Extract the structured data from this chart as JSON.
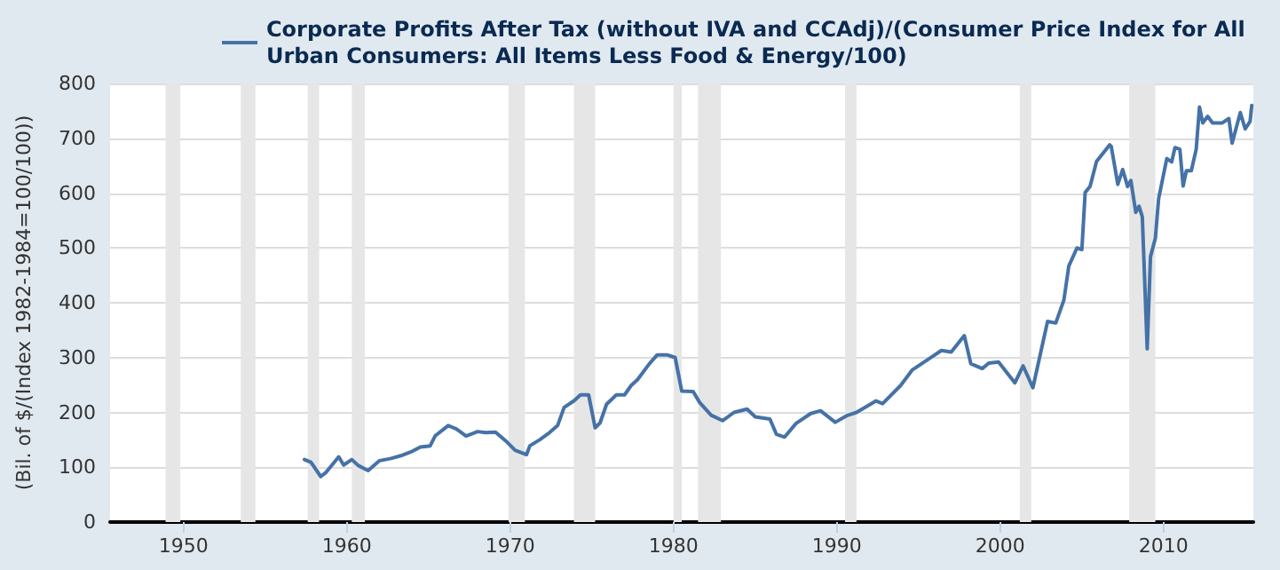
{
  "chart_data": {
    "type": "line",
    "ylabel": "(Bil. of $/(Index 1982-1984=100/100))",
    "xlim": [
      1945.5,
      2015.5
    ],
    "xticks": [
      1950,
      1960,
      1970,
      1980,
      1990,
      2000,
      2010
    ],
    "ylim": [
      0,
      800
    ],
    "yticks": [
      0,
      100,
      200,
      300,
      400,
      500,
      600,
      700,
      800
    ],
    "grid": "y",
    "legend": "top left",
    "marker": "none",
    "line_style": "solid",
    "bands": [
      {
        "axis": "x",
        "from": 1948.9,
        "to": 1949.8,
        "color": "#e6e6e6"
      },
      {
        "axis": "x",
        "from": 1953.5,
        "to": 1954.4,
        "color": "#e6e6e6"
      },
      {
        "axis": "x",
        "from": 1957.6,
        "to": 1958.3,
        "color": "#e6e6e6"
      },
      {
        "axis": "x",
        "from": 1960.3,
        "to": 1961.1,
        "color": "#e6e6e6"
      },
      {
        "axis": "x",
        "from": 1969.9,
        "to": 1970.9,
        "color": "#e6e6e6"
      },
      {
        "axis": "x",
        "from": 1973.9,
        "to": 1975.2,
        "color": "#e6e6e6"
      },
      {
        "axis": "x",
        "from": 1980.0,
        "to": 1980.5,
        "color": "#e6e6e6"
      },
      {
        "axis": "x",
        "from": 1981.5,
        "to": 1982.9,
        "color": "#e6e6e6"
      },
      {
        "axis": "x",
        "from": 1990.5,
        "to": 1991.2,
        "color": "#e6e6e6"
      },
      {
        "axis": "x",
        "from": 2001.2,
        "to": 2001.9,
        "color": "#e6e6e6"
      },
      {
        "axis": "x",
        "from": 2007.9,
        "to": 2009.5,
        "color": "#e6e6e6"
      }
    ],
    "series": [
      {
        "name": "Corporate Profits After Tax (without IVA and CCAdj)/(Consumer Price Index for All Urban Consumers: All Items Less Food & Energy/100)",
        "color": "#4572a7",
        "x": [
          1957.4,
          1957.8,
          1958.4,
          1958.7,
          1959.5,
          1959.8,
          1960.3,
          1960.7,
          1961.3,
          1962.0,
          1962.7,
          1963.3,
          1964.0,
          1964.5,
          1965.1,
          1965.4,
          1966.2,
          1966.7,
          1967.3,
          1968.0,
          1968.5,
          1969.1,
          1969.8,
          1970.3,
          1971.0,
          1971.2,
          1971.8,
          1972.4,
          1972.9,
          1973.3,
          1973.9,
          1974.3,
          1974.8,
          1975.2,
          1975.5,
          1975.9,
          1976.5,
          1977.0,
          1977.4,
          1977.8,
          1978.5,
          1979.0,
          1979.6,
          1980.1,
          1980.5,
          1981.2,
          1981.6,
          1982.3,
          1983.0,
          1983.7,
          1984.5,
          1985.0,
          1985.9,
          1986.3,
          1986.8,
          1987.5,
          1988.4,
          1989.0,
          1989.9,
          1990.6,
          1991.2,
          1992.4,
          1992.8,
          1993.9,
          1994.6,
          1995.7,
          1996.4,
          1997.0,
          1997.8,
          1998.2,
          1998.9,
          1999.3,
          1999.9,
          2000.9,
          2001.4,
          2002.0,
          2002.9,
          2003.4,
          2003.9,
          2004.2,
          2004.7,
          2005.0,
          2005.2,
          2005.5,
          2005.9,
          2006.7,
          2006.8,
          2007.2,
          2007.5,
          2007.8,
          2008.0,
          2008.3,
          2008.5,
          2008.7,
          2009.0,
          2009.2,
          2009.5,
          2009.7,
          2010.2,
          2010.5,
          2010.7,
          2011.0,
          2011.2,
          2011.4,
          2011.7,
          2012.0,
          2012.2,
          2012.4,
          2012.7,
          2013.0,
          2013.6,
          2014.0,
          2014.2,
          2014.7,
          2015.0,
          2015.3,
          2015.4
        ],
        "values": [
          114,
          109,
          83,
          90,
          119,
          104,
          114,
          103,
          94,
          112,
          116,
          121,
          129,
          137,
          139,
          157,
          176,
          170,
          157,
          165,
          163,
          164,
          146,
          131,
          123,
          139,
          150,
          163,
          176,
          209,
          221,
          232,
          232,
          172,
          181,
          215,
          232,
          232,
          249,
          260,
          288,
          305,
          305,
          300,
          239,
          238,
          218,
          195,
          185,
          200,
          206,
          192,
          188,
          160,
          155,
          180,
          198,
          203,
          182,
          194,
          200,
          221,
          216,
          249,
          277,
          299,
          313,
          310,
          340,
          289,
          280,
          290,
          292,
          254,
          285,
          245,
          366,
          363,
          405,
          467,
          500,
          497,
          601,
          612,
          658,
          688,
          685,
          616,
          643,
          612,
          623,
          565,
          576,
          557,
          316,
          484,
          518,
          590,
          663,
          657,
          683,
          680,
          613,
          641,
          641,
          680,
          757,
          728,
          740,
          728,
          728,
          736,
          691,
          747,
          717,
          731,
          760
        ]
      }
    ]
  }
}
